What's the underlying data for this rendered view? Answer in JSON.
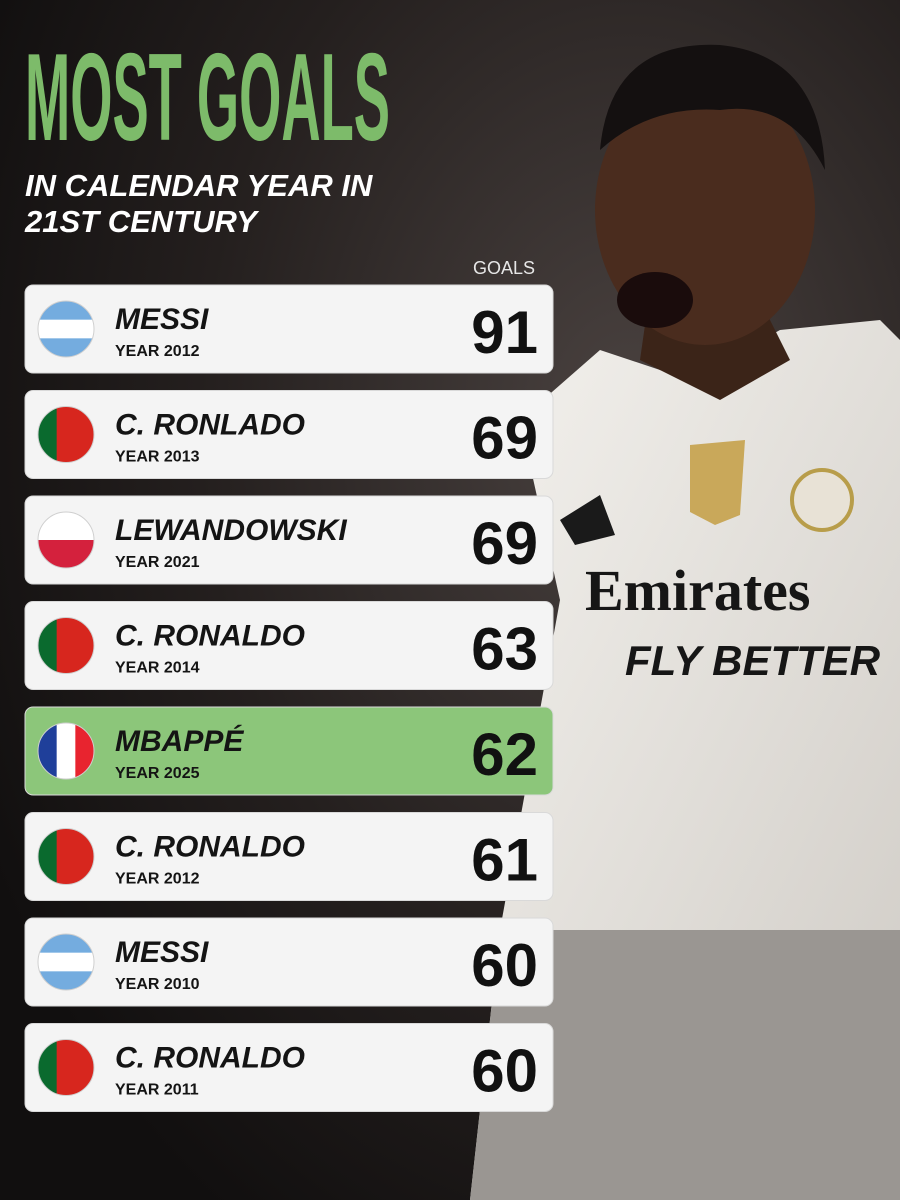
{
  "header": {
    "title": "MOST GOALS",
    "subtitle_lines": [
      "IN CALENDAR YEAR IN",
      "21ST CENTURY"
    ],
    "title_color": "#7dbb6a"
  },
  "table": {
    "column_label": "GOALS",
    "highlight_color": "#8cc67a",
    "rows": [
      {
        "name": "MESSI",
        "year": "YEAR 2012",
        "goals": 91,
        "flag": {
          "dir": "h",
          "colors": [
            "#74acdf",
            "#ffffff",
            "#74acdf"
          ]
        }
      },
      {
        "name": "C. RONLADO",
        "year": "YEAR 2013",
        "goals": 69,
        "flag": {
          "dir": "v",
          "colors": [
            "#0a6a2e",
            "#d7261e",
            "#d7261e"
          ]
        }
      },
      {
        "name": "LEWANDOWSKI",
        "year": "YEAR 2021",
        "goals": 69,
        "flag": {
          "dir": "h",
          "colors": [
            "#ffffff",
            "#d4213d"
          ]
        }
      },
      {
        "name": "C. RONALDO",
        "year": "YEAR 2014",
        "goals": 63,
        "flag": {
          "dir": "v",
          "colors": [
            "#0a6a2e",
            "#d7261e",
            "#d7261e"
          ]
        }
      },
      {
        "name": "MBAPPÉ",
        "year": "YEAR 2025",
        "goals": 62,
        "flag": {
          "dir": "v",
          "colors": [
            "#1f3f9a",
            "#ffffff",
            "#e8242f"
          ]
        },
        "highlight": true
      },
      {
        "name": "C. RONALDO",
        "year": "YEAR 2012",
        "goals": 61,
        "flag": {
          "dir": "v",
          "colors": [
            "#0a6a2e",
            "#d7261e",
            "#d7261e"
          ]
        }
      },
      {
        "name": "MESSI",
        "year": "YEAR 2010",
        "goals": 60,
        "flag": {
          "dir": "h",
          "colors": [
            "#74acdf",
            "#ffffff",
            "#74acdf"
          ]
        }
      },
      {
        "name": "C. RONALDO",
        "year": "YEAR 2011",
        "goals": 60,
        "flag": {
          "dir": "v",
          "colors": [
            "#0a6a2e",
            "#d7261e",
            "#d7261e"
          ]
        }
      }
    ]
  },
  "photo_text": {
    "sponsor": "Emirates",
    "slogan": "FLY BETTER"
  }
}
